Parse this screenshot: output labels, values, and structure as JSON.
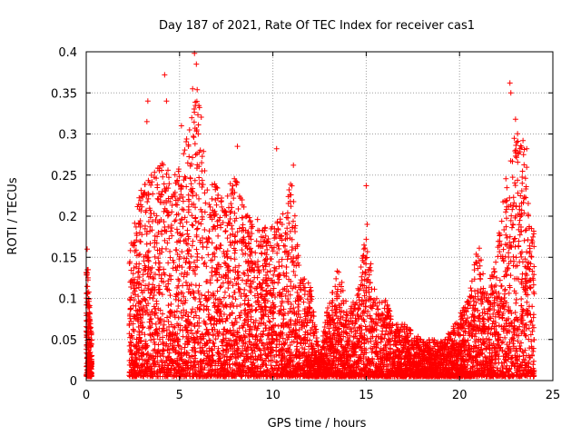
{
  "chart_data": {
    "type": "scatter",
    "title": "Day 187 of 2021, Rate Of TEC Index for receiver cas1",
    "xlabel": "GPS time / hours",
    "ylabel": "ROTI / TECUs",
    "xlim": [
      0,
      25
    ],
    "ylim": [
      0,
      0.4
    ],
    "xticks": [
      "0",
      "5",
      "10",
      "15",
      "20",
      "25"
    ],
    "yticks": [
      "0",
      "0.05",
      "0.1",
      "0.15",
      "0.2",
      "0.25",
      "0.3",
      "0.35",
      "0.4"
    ],
    "grid": true,
    "marker": "+",
    "color": "#ff0000",
    "envelope": [
      [
        0.0,
        0.0,
        0.16
      ],
      [
        0.3,
        0.0,
        0.05
      ],
      [
        2.3,
        0.0,
        0.16
      ],
      [
        2.6,
        0.0,
        0.2
      ],
      [
        3.0,
        0.0,
        0.24
      ],
      [
        3.5,
        0.0,
        0.26
      ],
      [
        4.0,
        0.0,
        0.27
      ],
      [
        4.5,
        0.0,
        0.26
      ],
      [
        5.0,
        0.0,
        0.26
      ],
      [
        5.5,
        0.0,
        0.31
      ],
      [
        6.0,
        0.0,
        0.36
      ],
      [
        6.5,
        0.0,
        0.24
      ],
      [
        7.0,
        0.0,
        0.24
      ],
      [
        7.5,
        0.0,
        0.22
      ],
      [
        8.0,
        0.0,
        0.27
      ],
      [
        8.5,
        0.0,
        0.21
      ],
      [
        9.0,
        0.0,
        0.2
      ],
      [
        9.5,
        0.0,
        0.19
      ],
      [
        10.0,
        0.0,
        0.19
      ],
      [
        10.5,
        0.0,
        0.2
      ],
      [
        11.0,
        0.0,
        0.25
      ],
      [
        11.5,
        0.0,
        0.13
      ],
      [
        12.0,
        0.0,
        0.12
      ],
      [
        12.5,
        0.0,
        0.03
      ],
      [
        13.0,
        0.0,
        0.1
      ],
      [
        13.5,
        0.0,
        0.14
      ],
      [
        14.0,
        0.0,
        0.09
      ],
      [
        14.5,
        0.0,
        0.1
      ],
      [
        15.0,
        0.0,
        0.2
      ],
      [
        15.5,
        0.0,
        0.11
      ],
      [
        16.0,
        0.0,
        0.1
      ],
      [
        16.5,
        0.0,
        0.07
      ],
      [
        17.0,
        0.0,
        0.07
      ],
      [
        17.5,
        0.0,
        0.06
      ],
      [
        18.0,
        0.0,
        0.05
      ],
      [
        18.5,
        0.0,
        0.05
      ],
      [
        19.0,
        0.0,
        0.05
      ],
      [
        19.5,
        0.0,
        0.06
      ],
      [
        20.0,
        0.0,
        0.08
      ],
      [
        20.5,
        0.0,
        0.1
      ],
      [
        21.0,
        0.0,
        0.17
      ],
      [
        21.5,
        0.0,
        0.11
      ],
      [
        22.0,
        0.0,
        0.16
      ],
      [
        22.5,
        0.0,
        0.25
      ],
      [
        23.0,
        0.0,
        0.31
      ],
      [
        23.5,
        0.0,
        0.28
      ],
      [
        24.0,
        0.0,
        0.18
      ]
    ],
    "outliers": [
      [
        0.05,
        0.16
      ],
      [
        0.1,
        0.135
      ],
      [
        3.3,
        0.34
      ],
      [
        3.25,
        0.315
      ],
      [
        4.2,
        0.372
      ],
      [
        4.3,
        0.34
      ],
      [
        5.8,
        0.398
      ],
      [
        5.9,
        0.385
      ],
      [
        5.7,
        0.355
      ],
      [
        6.0,
        0.3
      ],
      [
        8.1,
        0.285
      ],
      [
        10.2,
        0.282
      ],
      [
        11.1,
        0.262
      ],
      [
        15.0,
        0.237
      ],
      [
        15.05,
        0.19
      ],
      [
        15.0,
        0.172
      ],
      [
        22.7,
        0.362
      ],
      [
        22.75,
        0.35
      ],
      [
        23.0,
        0.318
      ],
      [
        23.4,
        0.292
      ],
      [
        23.6,
        0.282
      ],
      [
        5.1,
        0.31
      ],
      [
        6.2,
        0.255
      ]
    ]
  }
}
